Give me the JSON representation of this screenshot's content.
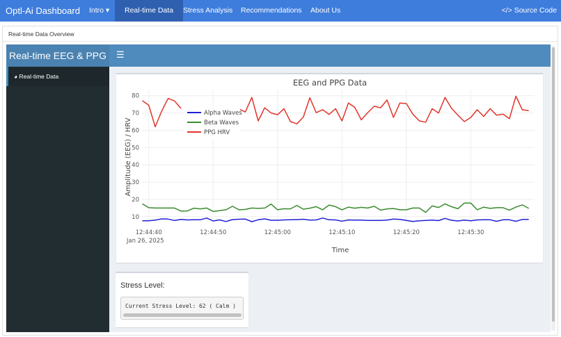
{
  "navbar": {
    "brand": "Optl-Ai Dashboard",
    "items": [
      "Intro ▾",
      "Real-time Data",
      "Stress Analysis",
      "Recommendations",
      "About Us"
    ],
    "active": "Real-time Data",
    "source_label": "Source Code",
    "source_icon": "code-icon",
    "color": "#3e7ddc"
  },
  "breadcrumb": "Real-time Data Overview",
  "dashboard": {
    "title": "Real-time EEG & PPG",
    "menu_icon": "hamburger-icon",
    "sidebar": [
      {
        "label": "Real-time Data",
        "icon": "dashboard-gauge-icon"
      }
    ]
  },
  "stress": {
    "title": "Stress Level:",
    "text": "Current Stress Level: 62 ( Calm )"
  },
  "chart_data": {
    "type": "line",
    "title": "EEG and PPG Data",
    "xlabel": "Time",
    "ylabel": "Amplitude (EEG) / HRV",
    "date_label": "Jan 26, 2025",
    "xticks": [
      "12:44:40",
      "12:44:50",
      "12:45:00",
      "12:45:10",
      "12:45:20",
      "12:45:30"
    ],
    "yticks": [
      10,
      20,
      30,
      40,
      50,
      60,
      70,
      80
    ],
    "ylim": [
      5.5,
      83.5
    ],
    "grid": true,
    "legend": "top-left",
    "x": [
      "12:44:39",
      "12:44:40",
      "12:44:41",
      "12:44:42",
      "12:44:43",
      "12:44:44",
      "12:44:45",
      "12:44:46",
      "12:44:47",
      "12:44:48",
      "12:44:49",
      "12:44:50",
      "12:44:51",
      "12:44:52",
      "12:44:53",
      "12:44:54",
      "12:44:55",
      "12:44:56",
      "12:44:57",
      "12:44:58",
      "12:44:59",
      "12:45:00",
      "12:45:01",
      "12:45:02",
      "12:45:03",
      "12:45:04",
      "12:45:05",
      "12:45:06",
      "12:45:07",
      "12:45:08",
      "12:45:09",
      "12:45:10",
      "12:45:11",
      "12:45:12",
      "12:45:13",
      "12:45:14",
      "12:45:15",
      "12:45:16",
      "12:45:17",
      "12:45:18",
      "12:45:19",
      "12:45:20",
      "12:45:21",
      "12:45:22",
      "12:45:23",
      "12:45:24",
      "12:45:25",
      "12:45:26",
      "12:45:27",
      "12:45:28",
      "12:45:29",
      "12:45:30",
      "12:45:31",
      "12:45:32",
      "12:45:33",
      "12:45:34",
      "12:45:35",
      "12:45:36",
      "12:45:37",
      "12:45:38",
      "12:45:39"
    ],
    "series": [
      {
        "name": "Alpha Waves",
        "color": "#1f1fd6",
        "values": [
          7.6,
          7.6,
          8,
          8.7,
          8.6,
          7.8,
          8.4,
          8.1,
          8.2,
          8.2,
          9.2,
          7.5,
          8.1,
          7.2,
          8.3,
          8.5,
          8.6,
          7.1,
          8.2,
          8.7,
          7.9,
          7.9,
          8.1,
          8.2,
          8.3,
          8.5,
          8.0,
          8.1,
          9.2,
          8.2,
          8.1,
          7.4,
          8.1,
          8.0,
          8.0,
          7.8,
          7.8,
          7.8,
          8.0,
          8.6,
          8.4,
          7.8,
          7.2,
          7.6,
          7.8,
          8.0,
          7.7,
          9.0,
          7.9,
          7.5,
          8.0,
          7.6,
          8.1,
          8.2,
          8.2,
          7.3,
          8.2,
          8.2,
          7.3,
          8.4,
          8.4
        ]
      },
      {
        "name": "Beta Waves",
        "color": "#3a8a2e",
        "values": [
          17.4,
          15.2,
          15,
          15,
          15,
          15,
          13.2,
          13.3,
          14.9,
          14.5,
          15,
          13,
          13.5,
          14,
          16,
          14,
          14.2,
          15,
          14.8,
          15,
          17.3,
          14,
          14.6,
          14.5,
          16.5,
          14.3,
          14.9,
          15.8,
          14,
          16.7,
          15.8,
          14,
          15.5,
          14.9,
          15.4,
          15,
          16,
          13.8,
          14.5,
          14.7,
          14,
          14,
          15,
          15,
          12.5,
          16.2,
          15.3,
          17.4,
          15.8,
          14.6,
          17.9,
          17.9,
          14,
          15.5,
          14.8,
          15.2,
          15.2,
          13.8,
          15.5,
          16.8,
          14.8
        ]
      },
      {
        "name": "PPG HRV",
        "color": "#e0352b",
        "values": [
          77.1,
          74.5,
          62,
          71,
          78.4,
          77,
          72.6,
          null,
          null,
          null,
          null,
          null,
          null,
          null,
          null,
          72.3,
          70.6,
          79,
          65.4,
          73,
          70,
          69,
          72.5,
          65,
          63.7,
          67.6,
          78.8,
          70.2,
          71.9,
          69.2,
          72.5,
          65.4,
          75.8,
          73.2,
          66,
          70.2,
          73.9,
          73,
          77.5,
          67.4,
          75.8,
          75.4,
          69.3,
          65.4,
          64.7,
          72.5,
          70,
          79,
          72.8,
          68.7,
          65,
          67.4,
          71.9,
          68,
          72.5,
          68.7,
          69.3,
          66.7,
          79.7,
          71.9,
          71.3
        ]
      }
    ]
  }
}
